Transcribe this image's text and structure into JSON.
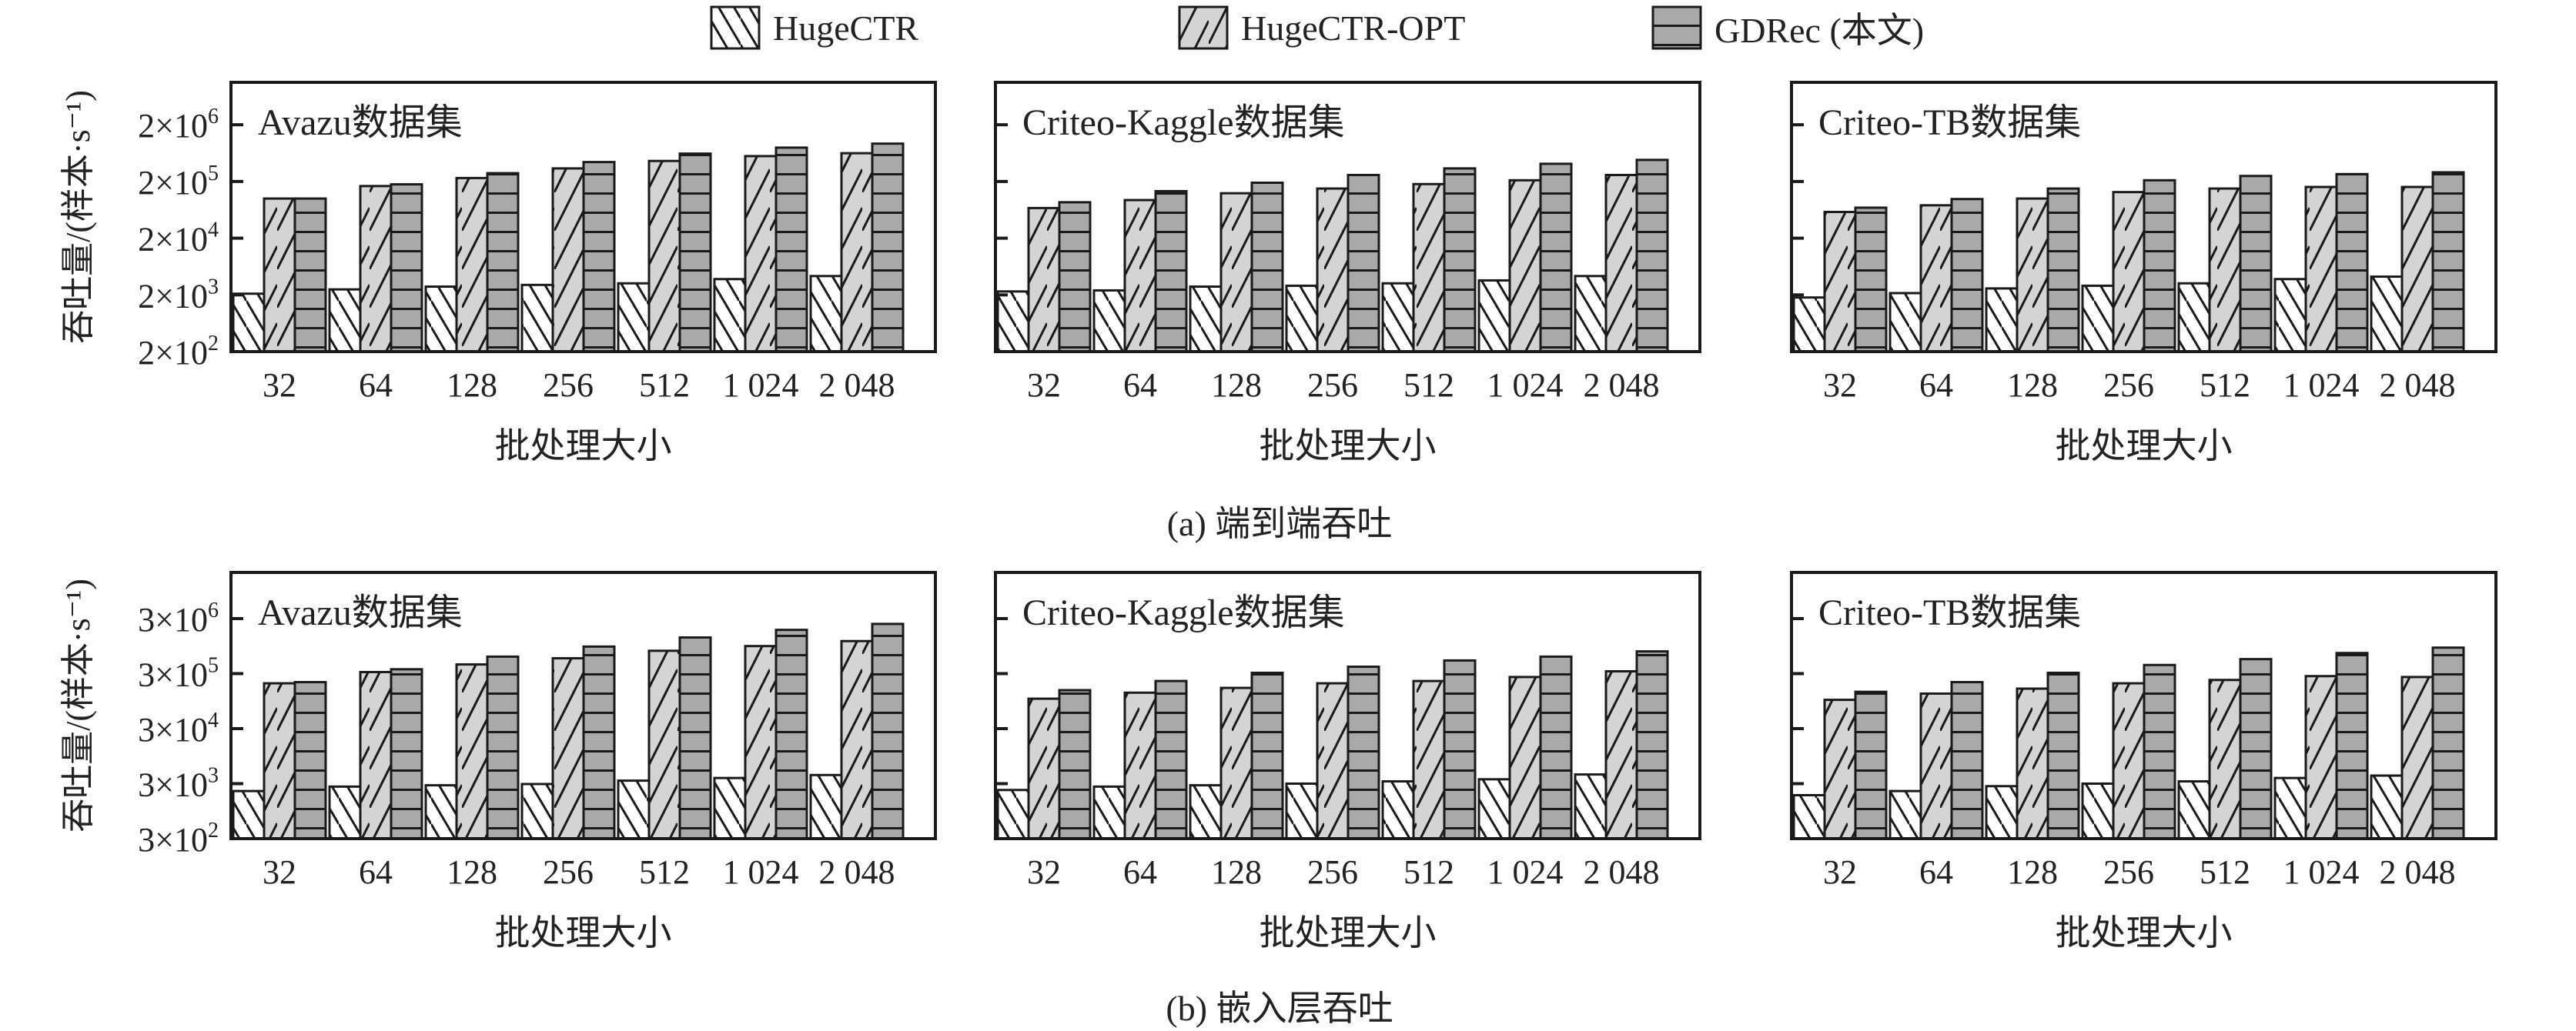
{
  "legend": [
    {
      "label": "HugeCTR",
      "pattern": "backslash-white"
    },
    {
      "label": "HugeCTR-OPT",
      "pattern": "slash-lightgray"
    },
    {
      "label": "GDRec (本文)",
      "pattern": "horizontal-gray"
    }
  ],
  "colors": {
    "hugectr": "#ffffff",
    "opt": "#d4d4d4",
    "gdrec": "#a9a9a9",
    "stroke": "#1a1a1a"
  },
  "rows": [
    {
      "caption": "(a)  端到端吞吐",
      "ylabel": "吞吐量/(样本·s⁻¹)",
      "xlabel": "批处理大小"
    },
    {
      "caption": "(b)  嵌入层吞吐",
      "ylabel": "吞吐量/(样本·s⁻¹)",
      "xlabel": "批处理大小"
    }
  ],
  "chart_data": [
    {
      "type": "bar",
      "title": "Avazu数据集",
      "row": 0,
      "col": 0,
      "xlabel": "批处理大小",
      "ylabel": "吞吐量/(样本·s⁻¹)",
      "yscale": "log",
      "ylim": [
        200,
        11200000
      ],
      "categories": [
        "32",
        "64",
        "128",
        "256",
        "512",
        "1 024",
        "2 048"
      ],
      "yticks": [
        {
          "value": 200,
          "mantissa": "2×10",
          "exp": "2"
        },
        {
          "value": 2000,
          "mantissa": "2×10",
          "exp": "3"
        },
        {
          "value": 20000,
          "mantissa": "2×10",
          "exp": "4"
        },
        {
          "value": 200000,
          "mantissa": "2×10",
          "exp": "5"
        },
        {
          "value": 2000000,
          "mantissa": "2×10",
          "exp": "6"
        }
      ],
      "series": [
        {
          "name": "HugeCTR",
          "values": [
            2100,
            2500,
            2800,
            3000,
            3200,
            3800,
            4300
          ]
        },
        {
          "name": "HugeCTR-OPT",
          "values": [
            100000,
            166000,
            230000,
            340000,
            460000,
            560000,
            630000
          ]
        },
        {
          "name": "GDRec (本文)",
          "values": [
            100000,
            178000,
            280000,
            440000,
            620000,
            790000,
            930000
          ]
        }
      ]
    },
    {
      "type": "bar",
      "title": "Criteo-Kaggle数据集",
      "row": 0,
      "col": 1,
      "xlabel": "批处理大小",
      "yscale": "log",
      "ylim": [
        200,
        11200000
      ],
      "categories": [
        "32",
        "64",
        "128",
        "256",
        "512",
        "1 024",
        "2 048"
      ],
      "yticks": [
        {
          "value": 200
        },
        {
          "value": 2000
        },
        {
          "value": 20000
        },
        {
          "value": 200000
        },
        {
          "value": 2000000
        }
      ],
      "series": [
        {
          "name": "HugeCTR",
          "values": [
            2300,
            2400,
            2800,
            2900,
            3200,
            3600,
            4300
          ]
        },
        {
          "name": "HugeCTR-OPT",
          "values": [
            68000,
            94000,
            124000,
            150000,
            180000,
            210000,
            260000
          ]
        },
        {
          "name": "GDRec (本文)",
          "values": [
            86000,
            135000,
            190000,
            260000,
            340000,
            410000,
            480000
          ]
        }
      ]
    },
    {
      "type": "bar",
      "title": "Criteo-TB数据集",
      "row": 0,
      "col": 2,
      "xlabel": "批处理大小",
      "yscale": "log",
      "ylim": [
        200,
        11200000
      ],
      "categories": [
        "32",
        "64",
        "128",
        "256",
        "512",
        "1 024",
        "2 048"
      ],
      "yticks": [
        {
          "value": 200
        },
        {
          "value": 2000
        },
        {
          "value": 20000
        },
        {
          "value": 200000
        },
        {
          "value": 2000000
        }
      ],
      "series": [
        {
          "name": "HugeCTR",
          "values": [
            1800,
            2150,
            2600,
            2900,
            3200,
            3800,
            4200
          ]
        },
        {
          "name": "HugeCTR-OPT",
          "values": [
            58000,
            76000,
            100000,
            130000,
            150000,
            160000,
            160000
          ]
        },
        {
          "name": "GDRec (本文)",
          "values": [
            69000,
            98000,
            150000,
            210000,
            250000,
            270000,
            290000
          ]
        }
      ]
    },
    {
      "type": "bar",
      "title": "Avazu数据集",
      "row": 1,
      "col": 0,
      "xlabel": "批处理大小",
      "ylabel": "吞吐量/(样本·s⁻¹)",
      "yscale": "log",
      "ylim": [
        300,
        20700000
      ],
      "categories": [
        "32",
        "64",
        "128",
        "256",
        "512",
        "1 024",
        "2 048"
      ],
      "yticks": [
        {
          "value": 300,
          "mantissa": "3×10",
          "exp": "2"
        },
        {
          "value": 3000,
          "mantissa": "3×10",
          "exp": "3"
        },
        {
          "value": 30000,
          "mantissa": "3×10",
          "exp": "4"
        },
        {
          "value": 300000,
          "mantissa": "3×10",
          "exp": "5"
        },
        {
          "value": 3000000,
          "mantissa": "3×10",
          "exp": "6"
        }
      ],
      "series": [
        {
          "name": "HugeCTR",
          "values": [
            2200,
            2650,
            2800,
            2950,
            3400,
            3800,
            4300
          ]
        },
        {
          "name": "HugeCTR-OPT",
          "values": [
            200000,
            320000,
            440000,
            570000,
            780000,
            950000,
            1170000
          ]
        },
        {
          "name": "GDRec (本文)",
          "values": [
            210000,
            360000,
            610000,
            930000,
            1360000,
            1870000,
            2400000
          ]
        }
      ]
    },
    {
      "type": "bar",
      "title": "Criteo-Kaggle数据集",
      "row": 1,
      "col": 1,
      "xlabel": "批处理大小",
      "yscale": "log",
      "ylim": [
        300,
        20700000
      ],
      "categories": [
        "32",
        "64",
        "128",
        "256",
        "512",
        "1 024",
        "2 048"
      ],
      "yticks": [
        {
          "value": 300
        },
        {
          "value": 3000
        },
        {
          "value": 30000
        },
        {
          "value": 300000
        },
        {
          "value": 3000000
        }
      ],
      "series": [
        {
          "name": "HugeCTR",
          "values": [
            2300,
            2650,
            2800,
            3000,
            3300,
            3600,
            4400
          ]
        },
        {
          "name": "HugeCTR-OPT",
          "values": [
            105000,
            135000,
            165000,
            200000,
            220000,
            260000,
            330000
          ]
        },
        {
          "name": "GDRec (本文)",
          "values": [
            150000,
            220000,
            310000,
            400000,
            520000,
            610000,
            760000
          ]
        }
      ]
    },
    {
      "type": "bar",
      "title": "Criteo-TB数据集",
      "row": 1,
      "col": 2,
      "xlabel": "批处理大小",
      "yscale": "log",
      "ylim": [
        300,
        20700000
      ],
      "categories": [
        "32",
        "64",
        "128",
        "256",
        "512",
        "1 024",
        "2 048"
      ],
      "yticks": [
        {
          "value": 300
        },
        {
          "value": 3000
        },
        {
          "value": 30000
        },
        {
          "value": 300000
        },
        {
          "value": 3000000
        }
      ],
      "series": [
        {
          "name": "HugeCTR",
          "values": [
            1850,
            2200,
            2700,
            3000,
            3300,
            3800,
            4200
          ]
        },
        {
          "name": "HugeCTR-OPT",
          "values": [
            100000,
            130000,
            160000,
            200000,
            230000,
            270000,
            260000
          ]
        },
        {
          "name": "GDRec (本文)",
          "values": [
            140000,
            210000,
            310000,
            430000,
            550000,
            710000,
            890000
          ]
        }
      ]
    }
  ]
}
